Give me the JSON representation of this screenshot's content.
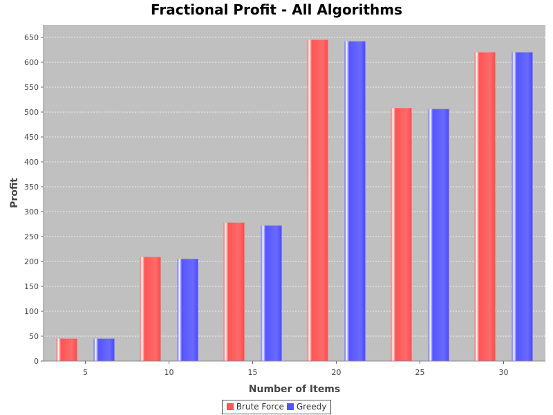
{
  "chart_data": {
    "type": "bar",
    "title": "Fractional Profit - All Algorithms",
    "xlabel": "Number of Items",
    "ylabel": "Profit",
    "categories": [
      "5",
      "10",
      "15",
      "20",
      "25",
      "30"
    ],
    "series": [
      {
        "name": "Brute Force",
        "color": "#ff5555",
        "values": [
          45,
          209,
          278,
          645,
          508,
          620
        ]
      },
      {
        "name": "Greedy",
        "color": "#5555ff",
        "values": [
          45,
          205,
          272,
          642,
          506,
          620
        ]
      }
    ],
    "ylim": [
      0,
      675
    ],
    "yticks": [
      0,
      50,
      100,
      150,
      200,
      250,
      300,
      350,
      400,
      450,
      500,
      550,
      600,
      650
    ],
    "grid": true,
    "legend": "bottom",
    "plot_background": "#c0c0c0"
  }
}
